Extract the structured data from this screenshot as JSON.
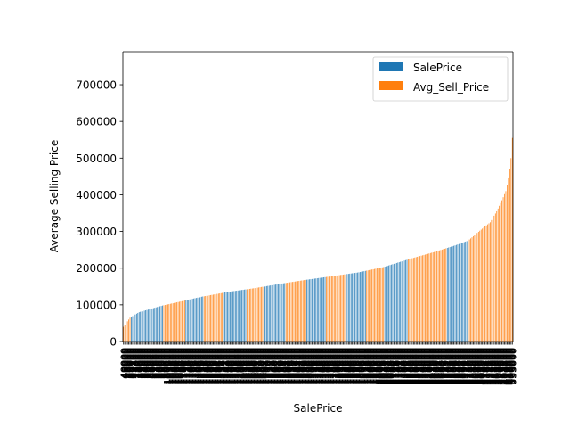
{
  "chart_data": {
    "type": "bar",
    "xlabel": "SalePrice",
    "ylabel": "Average Selling Price",
    "ylim": [
      0,
      790000
    ],
    "yticks": [
      0,
      100000,
      200000,
      300000,
      400000,
      500000,
      600000,
      700000
    ],
    "grid": false,
    "legend_position": "top-right",
    "bar_count": 300,
    "series": [
      {
        "name": "SalePrice",
        "color": "#1f77b4"
      },
      {
        "name": "Avg_Sell_Price",
        "color": "#ff7f0e"
      }
    ],
    "color_runs": [
      {
        "series": "Avg_Sell_Price",
        "start": 0,
        "count": 6
      },
      {
        "series": "SalePrice",
        "start": 6,
        "count": 25
      },
      {
        "series": "Avg_Sell_Price",
        "start": 31,
        "count": 17
      },
      {
        "series": "SalePrice",
        "start": 48,
        "count": 14
      },
      {
        "series": "Avg_Sell_Price",
        "start": 62,
        "count": 15
      },
      {
        "series": "SalePrice",
        "start": 77,
        "count": 18
      },
      {
        "series": "Avg_Sell_Price",
        "start": 95,
        "count": 13
      },
      {
        "series": "SalePrice",
        "start": 108,
        "count": 17
      },
      {
        "series": "Avg_Sell_Price",
        "start": 125,
        "count": 16
      },
      {
        "series": "SalePrice",
        "start": 141,
        "count": 15
      },
      {
        "series": "Avg_Sell_Price",
        "start": 156,
        "count": 16
      },
      {
        "series": "SalePrice",
        "start": 172,
        "count": 15
      },
      {
        "series": "Avg_Sell_Price",
        "start": 187,
        "count": 14
      },
      {
        "series": "SalePrice",
        "start": 201,
        "count": 18
      },
      {
        "series": "Avg_Sell_Price",
        "start": 219,
        "count": 30
      },
      {
        "series": "SalePrice",
        "start": 249,
        "count": 16
      },
      {
        "series": "Avg_Sell_Price",
        "start": 265,
        "count": 35
      }
    ],
    "value_curve": [
      {
        "index": 0,
        "value": 40000
      },
      {
        "index": 5,
        "value": 65000
      },
      {
        "index": 12,
        "value": 80000
      },
      {
        "index": 20,
        "value": 88000
      },
      {
        "index": 30,
        "value": 98000
      },
      {
        "index": 45,
        "value": 110000
      },
      {
        "index": 60,
        "value": 122000
      },
      {
        "index": 80,
        "value": 135000
      },
      {
        "index": 100,
        "value": 145000
      },
      {
        "index": 120,
        "value": 157000
      },
      {
        "index": 140,
        "value": 168000
      },
      {
        "index": 160,
        "value": 178000
      },
      {
        "index": 180,
        "value": 188000
      },
      {
        "index": 200,
        "value": 203000
      },
      {
        "index": 220,
        "value": 225000
      },
      {
        "index": 240,
        "value": 245000
      },
      {
        "index": 255,
        "value": 262000
      },
      {
        "index": 265,
        "value": 275000
      },
      {
        "index": 275,
        "value": 305000
      },
      {
        "index": 282,
        "value": 325000
      },
      {
        "index": 287,
        "value": 355000
      },
      {
        "index": 291,
        "value": 385000
      },
      {
        "index": 294,
        "value": 410000
      },
      {
        "index": 296,
        "value": 445000
      },
      {
        "index": 297,
        "value": 470000
      },
      {
        "index": 298,
        "value": 500000
      },
      {
        "index": 299,
        "value": 555000
      },
      {
        "index": 300,
        "value": 625000
      }
    ]
  }
}
